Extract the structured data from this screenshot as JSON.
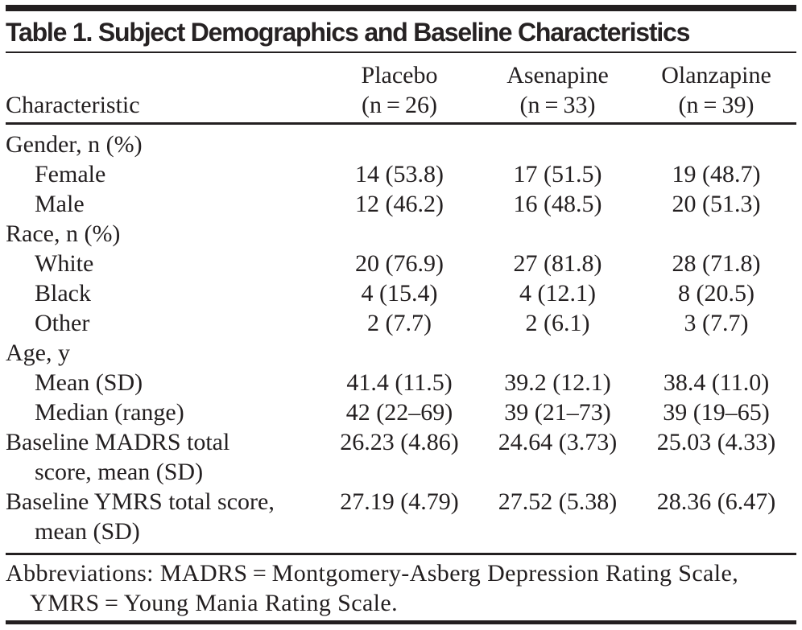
{
  "title": "Table 1. Subject Demographics and Baseline Characteristics",
  "table": {
    "row_header_label": "Characteristic",
    "columns": [
      {
        "label": "Placebo",
        "n": "(n = 26)"
      },
      {
        "label": "Asenapine",
        "n": "(n = 33)"
      },
      {
        "label": "Olanzapine",
        "n": "(n = 39)"
      }
    ],
    "rows": [
      {
        "label": "Gender, n (%)",
        "values": [
          "",
          "",
          ""
        ]
      },
      {
        "label": "Female",
        "values": [
          "14 (53.8)",
          "17 (51.5)",
          "19 (48.7)"
        ]
      },
      {
        "label": "Male",
        "values": [
          "12 (46.2)",
          "16 (48.5)",
          "20 (51.3)"
        ]
      },
      {
        "label": "Race, n (%)",
        "values": [
          "",
          "",
          ""
        ]
      },
      {
        "label": "White",
        "values": [
          "20 (76.9)",
          "27 (81.8)",
          "28 (71.8)"
        ]
      },
      {
        "label": "Black",
        "values": [
          "4 (15.4)",
          "4 (12.1)",
          "8 (20.5)"
        ]
      },
      {
        "label": "Other",
        "values": [
          "2 (7.7)",
          "2 (6.1)",
          "3 (7.7)"
        ]
      },
      {
        "label": "Age, y",
        "values": [
          "",
          "",
          ""
        ]
      },
      {
        "label": "Mean (SD)",
        "values": [
          "41.4 (11.5)",
          "39.2 (12.1)",
          "38.4 (11.0)"
        ]
      },
      {
        "label": "Median (range)",
        "values": [
          "42 (22–69)",
          "39 (21–73)",
          "39 (19–65)"
        ]
      },
      {
        "label": "Baseline MADRS total\nscore, mean (SD)",
        "values": [
          "26.23 (4.86)",
          "24.64 (3.73)",
          "25.03 (4.33)"
        ]
      },
      {
        "label": "Baseline YMRS total score,\nmean (SD)",
        "values": [
          "27.19 (4.79)",
          "27.52 (5.38)",
          "28.36 (6.47)"
        ]
      }
    ]
  },
  "footnote": "Abbreviations: MADRS = Montgomery-Asberg Depression Rating Scale,\nYMRS = Young Mania Rating Scale.",
  "colors": {
    "ink": "#231f20",
    "background": "#ffffff"
  }
}
